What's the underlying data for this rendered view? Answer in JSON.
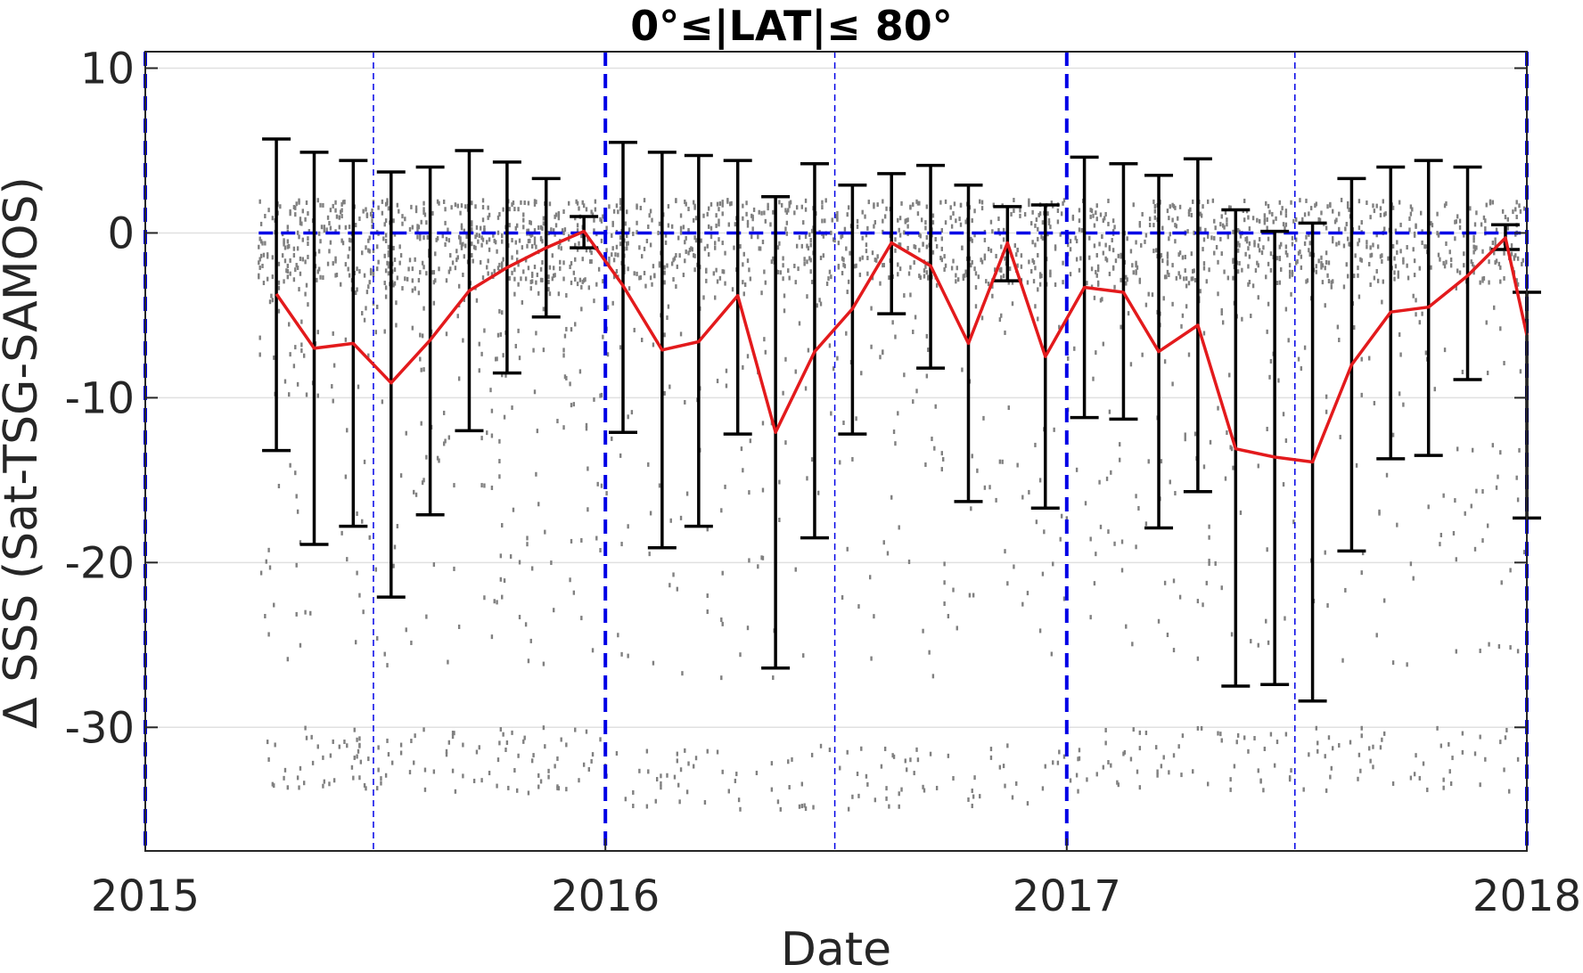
{
  "chart_data": {
    "type": "line",
    "title": "0°≤|LAT|≤ 80°",
    "xlabel": "Date",
    "ylabel": "Δ SSS (Sat-TSG-SAMOS)",
    "xlim": [
      "2015-01-01",
      "2018-01-01"
    ],
    "ylim": [
      -37.5,
      11
    ],
    "x_ticks": [
      "2015",
      "2016",
      "2017",
      "2018"
    ],
    "y_ticks": [
      10,
      0,
      -10,
      -20,
      -30
    ],
    "grid": true,
    "legend": "none",
    "colors": {
      "mean_line": "#e31a1c",
      "error_bars": "#000000",
      "scatter": "#808080",
      "reference_lines": "#0000e6",
      "grid": "#e0e0e0"
    },
    "year_boundaries": [
      "2015-01-01",
      "2016-01-01",
      "2017-01-01",
      "2018-01-01"
    ],
    "mid_year_lines": [
      "2015-07-01",
      "2016-07-01",
      "2017-07-01"
    ],
    "zero_line": 0,
    "series": [
      {
        "kind": "monthly mean with error bars",
        "points": [
          {
            "date": "2015-04-15",
            "mean": -3.7,
            "upper": 5.7,
            "lower": -13.2
          },
          {
            "date": "2015-05-15",
            "mean": -7.0,
            "upper": 4.9,
            "lower": -18.9
          },
          {
            "date": "2015-06-15",
            "mean": -6.7,
            "upper": 4.4,
            "lower": -17.8
          },
          {
            "date": "2015-07-15",
            "mean": -9.1,
            "upper": 3.7,
            "lower": -22.1
          },
          {
            "date": "2015-08-15",
            "mean": -6.5,
            "upper": 4.0,
            "lower": -17.1
          },
          {
            "date": "2015-09-15",
            "mean": -3.5,
            "upper": 5.0,
            "lower": -12.0
          },
          {
            "date": "2015-10-15",
            "mean": -2.1,
            "upper": 4.3,
            "lower": -8.5
          },
          {
            "date": "2015-11-15",
            "mean": -0.9,
            "upper": 3.3,
            "lower": -5.1
          },
          {
            "date": "2015-12-15",
            "mean": 0.1,
            "upper": 1.0,
            "lower": -0.9
          },
          {
            "date": "2016-01-15",
            "mean": -3.2,
            "upper": 5.5,
            "lower": -12.1
          },
          {
            "date": "2016-02-15",
            "mean": -7.1,
            "upper": 4.9,
            "lower": -19.1
          },
          {
            "date": "2016-03-15",
            "mean": -6.6,
            "upper": 4.7,
            "lower": -17.8
          },
          {
            "date": "2016-04-15",
            "mean": -3.8,
            "upper": 4.4,
            "lower": -12.2
          },
          {
            "date": "2016-05-15",
            "mean": -12.1,
            "upper": 2.2,
            "lower": -26.4
          },
          {
            "date": "2016-06-15",
            "mean": -7.2,
            "upper": 4.2,
            "lower": -18.5
          },
          {
            "date": "2016-07-15",
            "mean": -4.6,
            "upper": 2.9,
            "lower": -12.2
          },
          {
            "date": "2016-08-15",
            "mean": -0.6,
            "upper": 3.6,
            "lower": -4.9
          },
          {
            "date": "2016-09-15",
            "mean": -2.0,
            "upper": 4.1,
            "lower": -8.2
          },
          {
            "date": "2016-10-15",
            "mean": -6.7,
            "upper": 2.9,
            "lower": -16.3
          },
          {
            "date": "2016-11-15",
            "mean": -0.6,
            "upper": 1.6,
            "lower": -2.9
          },
          {
            "date": "2016-12-15",
            "mean": -7.5,
            "upper": 1.7,
            "lower": -16.7
          },
          {
            "date": "2017-01-15",
            "mean": -3.3,
            "upper": 4.6,
            "lower": -11.2
          },
          {
            "date": "2017-02-15",
            "mean": -3.6,
            "upper": 4.2,
            "lower": -11.3
          },
          {
            "date": "2017-03-15",
            "mean": -7.2,
            "upper": 3.5,
            "lower": -17.9
          },
          {
            "date": "2017-04-15",
            "mean": -5.6,
            "upper": 4.5,
            "lower": -15.7
          },
          {
            "date": "2017-05-15",
            "mean": -13.1,
            "upper": 1.4,
            "lower": -27.5
          },
          {
            "date": "2017-06-15",
            "mean": -13.6,
            "upper": 0.1,
            "lower": -27.4
          },
          {
            "date": "2017-07-15",
            "mean": -13.9,
            "upper": 0.6,
            "lower": -28.4
          },
          {
            "date": "2017-08-15",
            "mean": -8.0,
            "upper": 3.3,
            "lower": -19.3
          },
          {
            "date": "2017-09-15",
            "mean": -4.8,
            "upper": 4.0,
            "lower": -13.7
          },
          {
            "date": "2017-10-15",
            "mean": -4.5,
            "upper": 4.4,
            "lower": -13.5
          },
          {
            "date": "2017-11-15",
            "mean": -2.6,
            "upper": 4.0,
            "lower": -8.9
          },
          {
            "date": "2017-12-15",
            "mean": -0.3,
            "upper": 0.5,
            "lower": -1.0
          },
          {
            "date": "2018-01-01",
            "mean": -6.2,
            "upper": -3.6,
            "lower": -17.3
          }
        ]
      },
      {
        "kind": "scatter",
        "note": "daily differences (gray points)",
        "clusters": [
          {
            "from": "2015-04-01",
            "to": "2015-12-31",
            "main_band": [
              -3,
              2
            ],
            "tail": [
              -34,
              -3
            ]
          },
          {
            "from": "2016-01-01",
            "to": "2016-12-31",
            "main_band": [
              -3,
              2
            ],
            "tail": [
              -35,
              -3
            ]
          },
          {
            "from": "2017-01-01",
            "to": "2017-12-31",
            "main_band": [
              -3,
              2
            ],
            "tail": [
              -34,
              -3
            ]
          }
        ]
      }
    ]
  }
}
